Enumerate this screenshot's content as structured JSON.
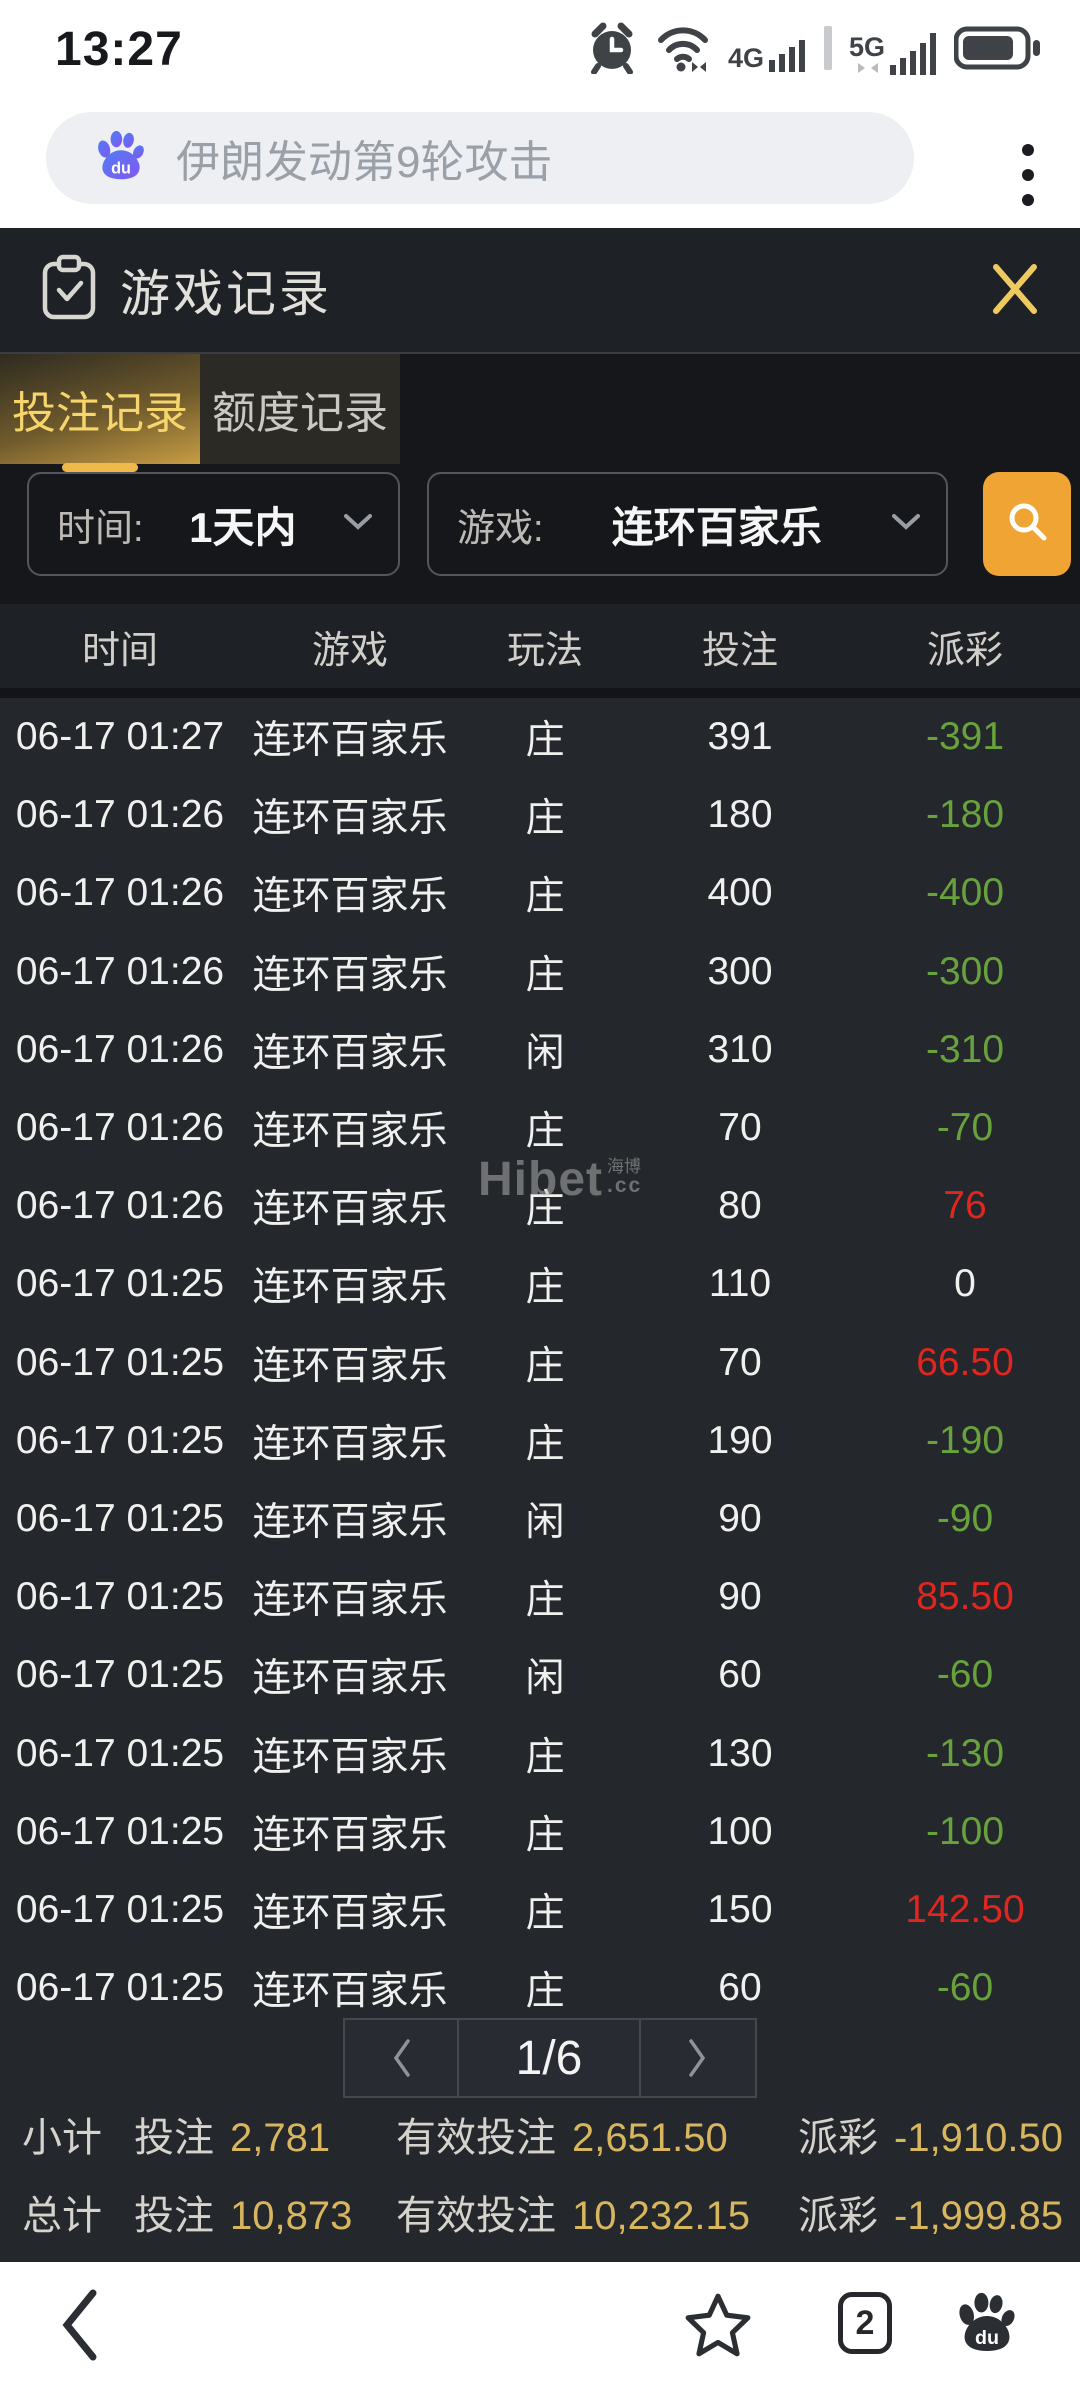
{
  "status_bar": {
    "time": "13:27",
    "network_a": "4G",
    "network_b": "5G"
  },
  "browser_bar": {
    "query": "伊朗发动第9轮攻击"
  },
  "panel": {
    "title": "游戏记录",
    "tabs": [
      {
        "label": "投注记录"
      },
      {
        "label": "额度记录"
      }
    ],
    "filters": {
      "time_label": "时间:",
      "time_value": "1天内",
      "game_label": "游戏:",
      "game_value": "连环百家乐"
    },
    "table": {
      "headers": [
        "时间",
        "游戏",
        "玩法",
        "投注",
        "派彩"
      ],
      "rows": [
        {
          "time": "06-17 01:27",
          "game": "连环百家乐",
          "play": "庄",
          "bet": "391",
          "payout": "-391",
          "tone": "green"
        },
        {
          "time": "06-17 01:26",
          "game": "连环百家乐",
          "play": "庄",
          "bet": "180",
          "payout": "-180",
          "tone": "green"
        },
        {
          "time": "06-17 01:26",
          "game": "连环百家乐",
          "play": "庄",
          "bet": "400",
          "payout": "-400",
          "tone": "green"
        },
        {
          "time": "06-17 01:26",
          "game": "连环百家乐",
          "play": "庄",
          "bet": "300",
          "payout": "-300",
          "tone": "green"
        },
        {
          "time": "06-17 01:26",
          "game": "连环百家乐",
          "play": "闲",
          "bet": "310",
          "payout": "-310",
          "tone": "green"
        },
        {
          "time": "06-17 01:26",
          "game": "连环百家乐",
          "play": "庄",
          "bet": "70",
          "payout": "-70",
          "tone": "green"
        },
        {
          "time": "06-17 01:26",
          "game": "连环百家乐",
          "play": "庄",
          "bet": "80",
          "payout": "76",
          "tone": "red"
        },
        {
          "time": "06-17 01:25",
          "game": "连环百家乐",
          "play": "庄",
          "bet": "110",
          "payout": "0",
          "tone": "white"
        },
        {
          "time": "06-17 01:25",
          "game": "连环百家乐",
          "play": "庄",
          "bet": "70",
          "payout": "66.50",
          "tone": "red"
        },
        {
          "time": "06-17 01:25",
          "game": "连环百家乐",
          "play": "庄",
          "bet": "190",
          "payout": "-190",
          "tone": "green"
        },
        {
          "time": "06-17 01:25",
          "game": "连环百家乐",
          "play": "闲",
          "bet": "90",
          "payout": "-90",
          "tone": "green"
        },
        {
          "time": "06-17 01:25",
          "game": "连环百家乐",
          "play": "庄",
          "bet": "90",
          "payout": "85.50",
          "tone": "red"
        },
        {
          "time": "06-17 01:25",
          "game": "连环百家乐",
          "play": "闲",
          "bet": "60",
          "payout": "-60",
          "tone": "green"
        },
        {
          "time": "06-17 01:25",
          "game": "连环百家乐",
          "play": "庄",
          "bet": "130",
          "payout": "-130",
          "tone": "green"
        },
        {
          "time": "06-17 01:25",
          "game": "连环百家乐",
          "play": "庄",
          "bet": "100",
          "payout": "-100",
          "tone": "green"
        },
        {
          "time": "06-17 01:25",
          "game": "连环百家乐",
          "play": "庄",
          "bet": "150",
          "payout": "142.50",
          "tone": "red"
        },
        {
          "time": "06-17 01:25",
          "game": "连环百家乐",
          "play": "庄",
          "bet": "60",
          "payout": "-60",
          "tone": "green"
        }
      ]
    },
    "watermark": {
      "brand": "Hibet",
      "cn": "海博",
      "tld": ".cc"
    },
    "pagination": {
      "page": "1/6"
    },
    "summary": {
      "subtotal": {
        "label": "小计",
        "bet_label": "投注",
        "bet": "2,781",
        "valid_label": "有效投注",
        "valid": "2,651.50",
        "payout_label": "派彩",
        "payout": "-1,910.50"
      },
      "total": {
        "label": "总计",
        "bet_label": "投注",
        "bet": "10,873",
        "valid_label": "有效投注",
        "valid": "10,232.15",
        "payout_label": "派彩",
        "payout": "-1,999.85"
      }
    },
    "colors": {
      "gold": "#d7b65e",
      "green": "#68a23d",
      "red": "#e12620",
      "accent": "#f0a433"
    }
  },
  "bottom_nav": {
    "tab_count": "2"
  }
}
